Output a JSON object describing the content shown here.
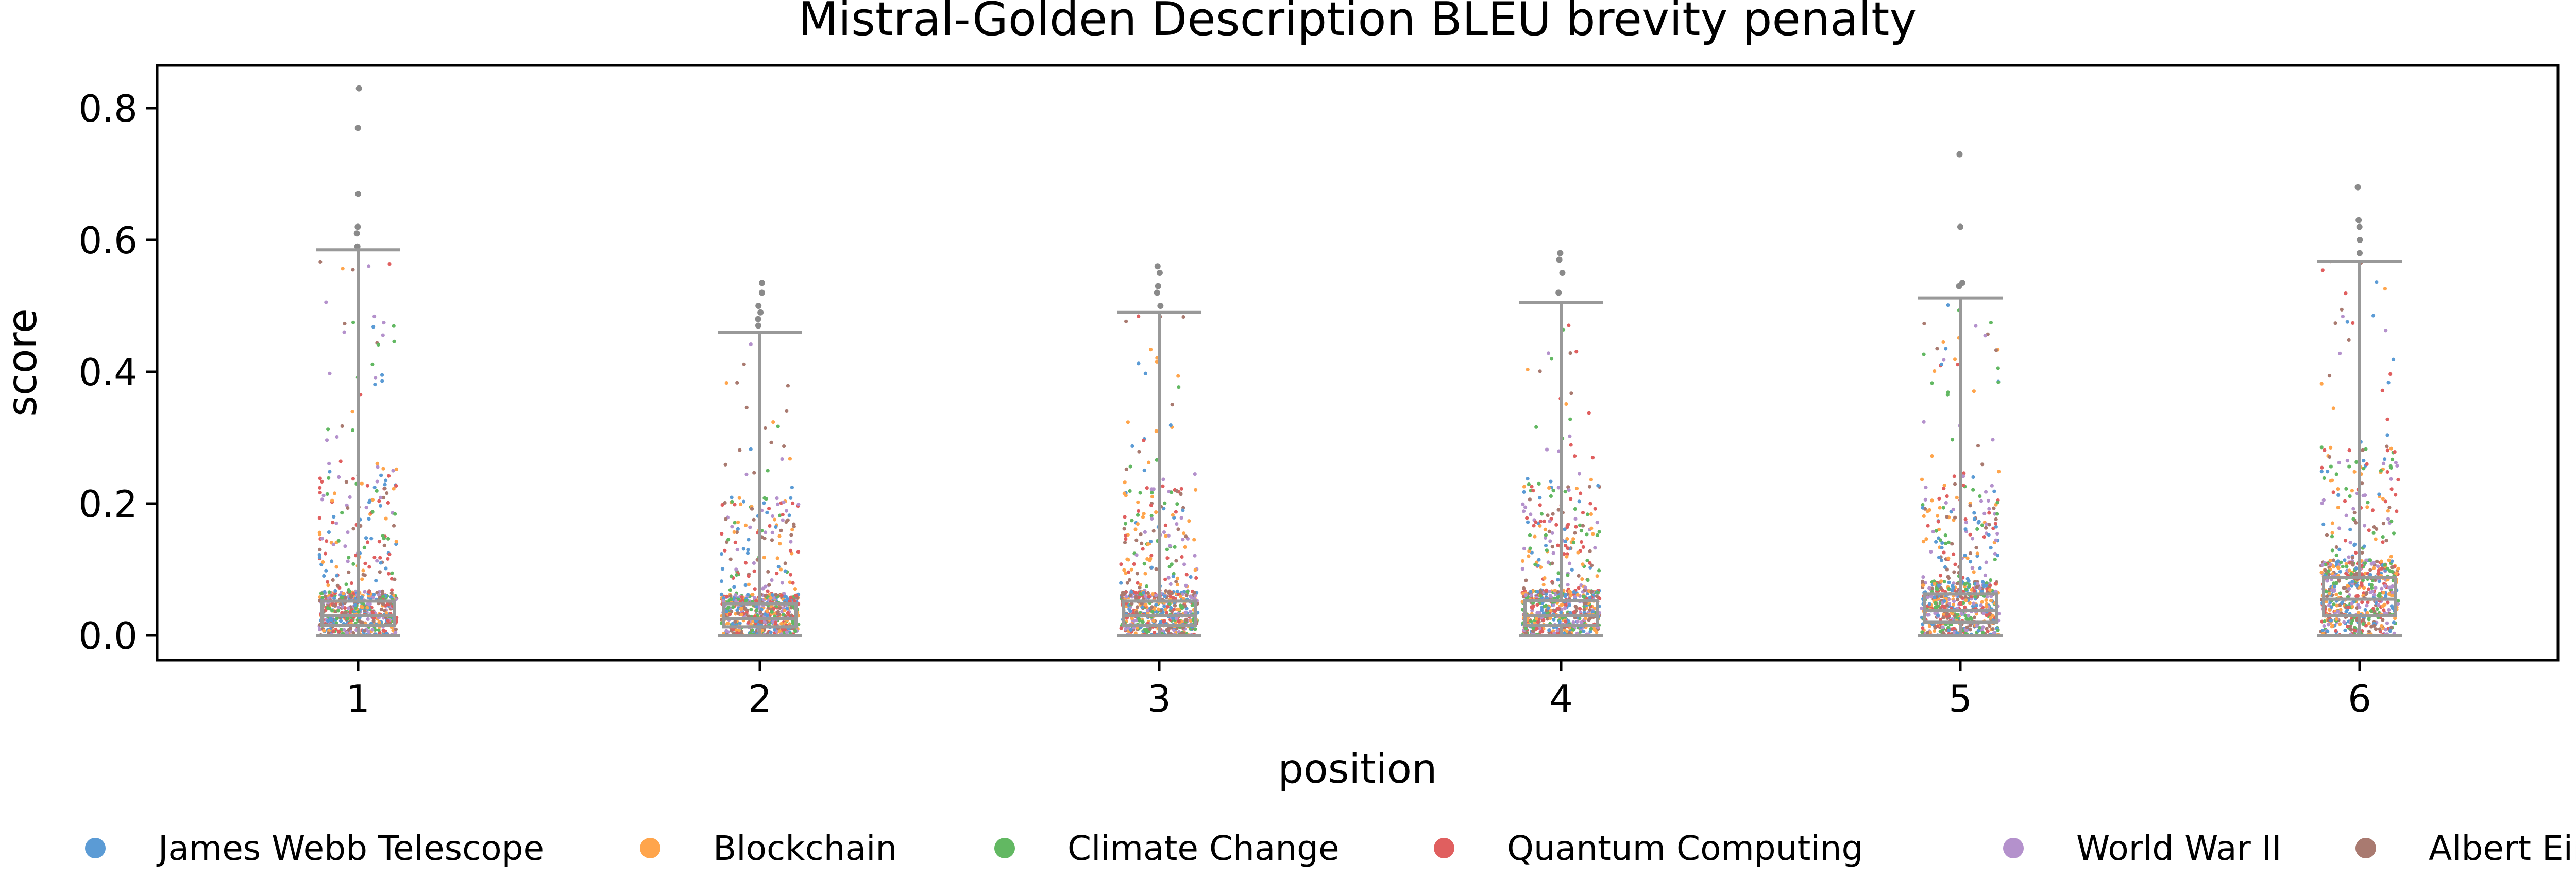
{
  "chart_data": {
    "type": "box-strip",
    "title": "Mistral-Golden Description BLEU brevity penalty",
    "xlabel": "position",
    "ylabel": "score",
    "categories": [
      "1",
      "2",
      "3",
      "4",
      "5",
      "6"
    ],
    "yticks": [
      "0.0",
      "0.2",
      "0.4",
      "0.6",
      "0.8"
    ],
    "ytick_values": [
      0.0,
      0.2,
      0.4,
      0.6,
      0.8
    ],
    "ylim": [
      -0.035,
      0.87
    ],
    "grid": false,
    "legend_position": "bottom",
    "box_color": "#999999",
    "series": [
      {
        "name": "James Webb Telescope",
        "color": "#5b9bd5"
      },
      {
        "name": "Blockchain",
        "color": "#ffa54c"
      },
      {
        "name": "Climate Change",
        "color": "#62b862"
      },
      {
        "name": "Quantum Computing",
        "color": "#e05f5f"
      },
      {
        "name": "World War II",
        "color": "#b491cc"
      },
      {
        "name": "Albert Einstein",
        "color": "#a97a70"
      }
    ],
    "boxes": [
      {
        "position": "1",
        "q1": 0.015,
        "median": 0.03,
        "q3": 0.052,
        "whisker_low": 0.0,
        "whisker_high": 0.585,
        "outliers": [
          0.59,
          0.61,
          0.62,
          0.67,
          0.77,
          0.83
        ]
      },
      {
        "position": "2",
        "q1": 0.013,
        "median": 0.025,
        "q3": 0.048,
        "whisker_low": 0.0,
        "whisker_high": 0.46,
        "outliers": [
          0.47,
          0.48,
          0.49,
          0.5,
          0.52,
          0.535
        ]
      },
      {
        "position": "3",
        "q1": 0.015,
        "median": 0.03,
        "q3": 0.052,
        "whisker_low": 0.0,
        "whisker_high": 0.49,
        "outliers": [
          0.5,
          0.52,
          0.53,
          0.55,
          0.56
        ]
      },
      {
        "position": "4",
        "q1": 0.015,
        "median": 0.03,
        "q3": 0.053,
        "whisker_low": 0.0,
        "whisker_high": 0.505,
        "outliers": [
          0.52,
          0.55,
          0.57,
          0.58
        ]
      },
      {
        "position": "5",
        "q1": 0.02,
        "median": 0.038,
        "q3": 0.063,
        "whisker_low": 0.0,
        "whisker_high": 0.512,
        "outliers": [
          0.53,
          0.535,
          0.62,
          0.73
        ]
      },
      {
        "position": "6",
        "q1": 0.03,
        "median": 0.055,
        "q3": 0.088,
        "whisker_low": 0.0,
        "whisker_high": 0.568,
        "outliers": [
          0.58,
          0.6,
          0.62,
          0.63,
          0.68
        ]
      }
    ]
  }
}
